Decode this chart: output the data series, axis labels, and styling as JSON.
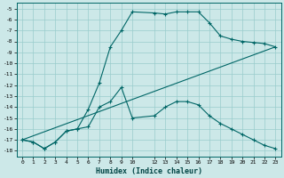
{
  "xlabel": "Humidex (Indice chaleur)",
  "bg_color": "#cce8e8",
  "grid_color": "#99cccc",
  "line_color": "#006666",
  "xlim": [
    -0.5,
    23.5
  ],
  "ylim": [
    -18.5,
    -4.5
  ],
  "xticks": [
    0,
    1,
    2,
    3,
    4,
    5,
    6,
    7,
    8,
    9,
    10,
    12,
    13,
    14,
    15,
    16,
    17,
    18,
    19,
    20,
    21,
    22,
    23
  ],
  "yticks": [
    -5,
    -6,
    -7,
    -8,
    -9,
    -10,
    -11,
    -12,
    -13,
    -14,
    -15,
    -16,
    -17,
    -18
  ],
  "curve1_x": [
    0,
    1,
    2,
    3,
    4,
    5,
    6,
    7,
    8,
    9,
    10,
    12,
    13,
    14,
    15,
    16,
    17,
    18,
    19,
    20,
    21,
    22,
    23
  ],
  "curve1_y": [
    -17.0,
    -17.2,
    -17.8,
    -17.2,
    -16.2,
    -16.0,
    -14.2,
    -11.8,
    -8.5,
    -7.0,
    -5.3,
    -5.4,
    -5.5,
    -5.3,
    -5.3,
    -5.3,
    -6.3,
    -7.5,
    -7.8,
    -8.0,
    -8.1,
    -8.2,
    -8.5
  ],
  "curve2_x": [
    0,
    1,
    2,
    3,
    4,
    5,
    6,
    7,
    8,
    9,
    10,
    12,
    13,
    14,
    15,
    16,
    17,
    18,
    19,
    20,
    21,
    22,
    23
  ],
  "curve2_y": [
    -17.0,
    -17.2,
    -17.8,
    -17.2,
    -16.2,
    -16.0,
    -15.8,
    -14.0,
    -13.5,
    -12.2,
    -15.0,
    -14.8,
    -14.0,
    -13.5,
    -13.5,
    -13.8,
    -14.8,
    -15.5,
    -16.0,
    -16.5,
    -17.0,
    -17.5,
    -17.8
  ],
  "curve3_x": [
    0,
    23
  ],
  "curve3_y": [
    -17.0,
    -8.5
  ]
}
